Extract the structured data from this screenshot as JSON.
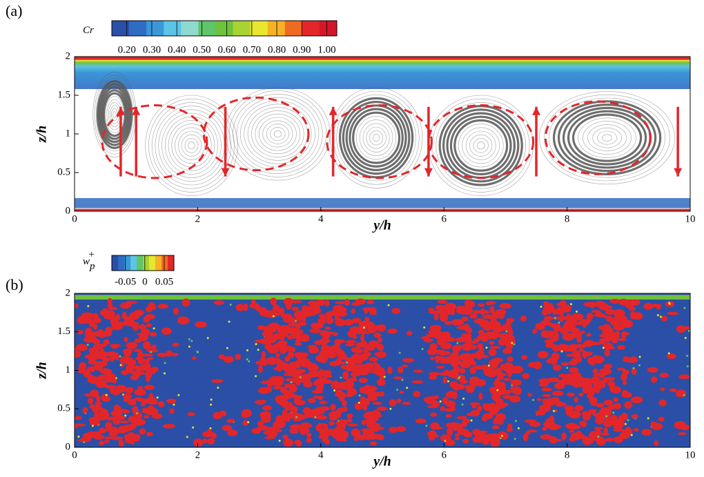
{
  "chart_data": [
    {
      "type": "contour",
      "label": "(a)",
      "xlabel": "y/h",
      "ylabel": "z/h",
      "xlim": [
        0,
        10
      ],
      "ylim": [
        0,
        2
      ],
      "xticks": [
        0,
        2,
        4,
        6,
        8,
        10
      ],
      "yticks": [
        0,
        {
          "value": 0.5,
          "label": "0.5"
        },
        1,
        1.5,
        2
      ],
      "colorbar": {
        "title": "Cr",
        "lim": [
          0.14,
          1.04
        ],
        "ticks": [
          {
            "value": 0.2,
            "label": "0.20"
          },
          {
            "value": 0.3,
            "label": "0.30"
          },
          {
            "value": 0.4,
            "label": "0.40"
          },
          {
            "value": 0.5,
            "label": "0.50"
          },
          {
            "value": 0.6,
            "label": "0.60"
          },
          {
            "value": 0.7,
            "label": "0.70"
          },
          {
            "value": 0.8,
            "label": "0.80"
          },
          {
            "value": 0.9,
            "label": "0.90"
          },
          {
            "value": 1.0,
            "label": "1.00"
          }
        ],
        "colors": [
          "#2b4fa6",
          "#2f6cc4",
          "#3a97d8",
          "#5cc4e4",
          "#8fd9d0",
          "#5fc46a",
          "#6ec23c",
          "#a9d332",
          "#e8e62e",
          "#f6b224",
          "#ef6a22",
          "#e3262a",
          "#d5152a"
        ]
      }
    },
    {
      "type": "contour",
      "label": "(b)",
      "xlabel": "y/h",
      "ylabel": "z/h",
      "xlim": [
        0,
        10
      ],
      "ylim": [
        0,
        2
      ],
      "xticks": [
        0,
        2,
        4,
        6,
        8,
        10
      ],
      "yticks": [
        0,
        {
          "value": 0.5,
          "label": "0.5"
        },
        1,
        1.5,
        2
      ],
      "colorbar": {
        "title": "w",
        "title_sub": "p",
        "title_sup": "+",
        "lim": [
          -0.085,
          0.075
        ],
        "ticks": [
          -0.05,
          0,
          0.05
        ],
        "colors": [
          "#2b4fa6",
          "#2f6cc4",
          "#3a97d8",
          "#5cc4e4",
          "#5fc46a",
          "#a9d332",
          "#e8e62e",
          "#f6b224",
          "#ef6a22",
          "#e3262a"
        ]
      }
    }
  ]
}
